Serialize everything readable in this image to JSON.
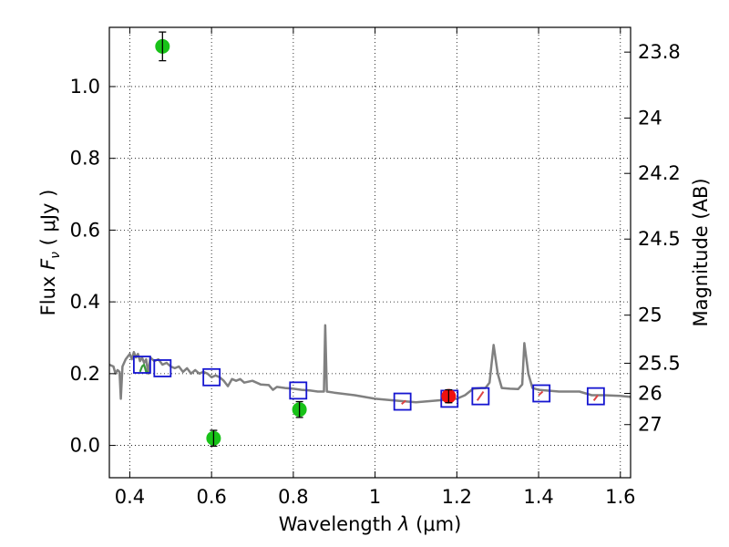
{
  "chart_data": {
    "type": "scatter",
    "xlabel": "Wavelength  λ (μm)",
    "ylabel": "Flux  F_ν  ( μJy )",
    "ylabel_parts": {
      "prefix": "Flux  ",
      "symbol": "F",
      "sub": "ν",
      "unit": "  ( μJy )"
    },
    "xlabel_parts": {
      "prefix": "Wavelength  ",
      "symbol": "λ",
      "unit": " (μm)"
    },
    "y2label": "Magnitude (AB)",
    "xlim": [
      0.35,
      1.625
    ],
    "ylim": [
      -0.09,
      1.165
    ],
    "grid": true,
    "x_ticks": [
      {
        "value": 0.4,
        "label": "0.4"
      },
      {
        "value": 0.6,
        "label": "0.6"
      },
      {
        "value": 0.8,
        "label": "0.8"
      },
      {
        "value": 1.0,
        "label": "1"
      },
      {
        "value": 1.2,
        "label": "1.2"
      },
      {
        "value": 1.4,
        "label": "1.4"
      },
      {
        "value": 1.6,
        "label": "1.6"
      }
    ],
    "y_ticks": [
      {
        "value": 0.0,
        "label": "0.0"
      },
      {
        "value": 0.2,
        "label": "0.2"
      },
      {
        "value": 0.4,
        "label": "0.4"
      },
      {
        "value": 0.6,
        "label": "0.6"
      },
      {
        "value": 0.8,
        "label": "0.8"
      },
      {
        "value": 1.0,
        "label": "1.0"
      }
    ],
    "y2_ticks": [
      {
        "flux": 1.096,
        "label": "23.8"
      },
      {
        "flux": 0.912,
        "label": "24"
      },
      {
        "flux": 0.758,
        "label": "24.2"
      },
      {
        "flux": 0.575,
        "label": "24.5"
      },
      {
        "flux": 0.363,
        "label": "25"
      },
      {
        "flux": 0.229,
        "label": "25.5"
      },
      {
        "flux": 0.145,
        "label": "26"
      },
      {
        "flux": 0.058,
        "label": "27"
      }
    ],
    "series": [
      {
        "name": "model spectrum",
        "kind": "line",
        "color": "#808080",
        "points": [
          [
            0.35,
            0.225
          ],
          [
            0.36,
            0.22
          ],
          [
            0.365,
            0.2
          ],
          [
            0.37,
            0.21
          ],
          [
            0.375,
            0.205
          ],
          [
            0.378,
            0.13
          ],
          [
            0.382,
            0.22
          ],
          [
            0.39,
            0.24
          ],
          [
            0.4,
            0.255
          ],
          [
            0.405,
            0.24
          ],
          [
            0.41,
            0.26
          ],
          [
            0.415,
            0.245
          ],
          [
            0.42,
            0.255
          ],
          [
            0.425,
            0.235
          ],
          [
            0.43,
            0.245
          ],
          [
            0.435,
            0.23
          ],
          [
            0.44,
            0.24
          ],
          [
            0.445,
            0.2
          ],
          [
            0.45,
            0.245
          ],
          [
            0.46,
            0.235
          ],
          [
            0.47,
            0.24
          ],
          [
            0.48,
            0.225
          ],
          [
            0.49,
            0.23
          ],
          [
            0.5,
            0.22
          ],
          [
            0.51,
            0.215
          ],
          [
            0.52,
            0.22
          ],
          [
            0.53,
            0.205
          ],
          [
            0.54,
            0.215
          ],
          [
            0.55,
            0.2
          ],
          [
            0.56,
            0.21
          ],
          [
            0.57,
            0.2
          ],
          [
            0.58,
            0.205
          ],
          [
            0.59,
            0.2
          ],
          [
            0.6,
            0.19
          ],
          [
            0.61,
            0.195
          ],
          [
            0.62,
            0.19
          ],
          [
            0.63,
            0.18
          ],
          [
            0.64,
            0.165
          ],
          [
            0.65,
            0.185
          ],
          [
            0.66,
            0.18
          ],
          [
            0.67,
            0.185
          ],
          [
            0.68,
            0.175
          ],
          [
            0.7,
            0.18
          ],
          [
            0.72,
            0.17
          ],
          [
            0.74,
            0.168
          ],
          [
            0.75,
            0.155
          ],
          [
            0.76,
            0.163
          ],
          [
            0.78,
            0.16
          ],
          [
            0.8,
            0.158
          ],
          [
            0.82,
            0.155
          ],
          [
            0.84,
            0.153
          ],
          [
            0.86,
            0.15
          ],
          [
            0.875,
            0.15
          ],
          [
            0.878,
            0.335
          ],
          [
            0.882,
            0.15
          ],
          [
            0.9,
            0.147
          ],
          [
            0.95,
            0.14
          ],
          [
            1.0,
            0.13
          ],
          [
            1.05,
            0.125
          ],
          [
            1.1,
            0.12
          ],
          [
            1.15,
            0.125
          ],
          [
            1.2,
            0.13
          ],
          [
            1.22,
            0.14
          ],
          [
            1.24,
            0.158
          ],
          [
            1.26,
            0.16
          ],
          [
            1.27,
            0.16
          ],
          [
            1.28,
            0.175
          ],
          [
            1.29,
            0.28
          ],
          [
            1.3,
            0.2
          ],
          [
            1.31,
            0.16
          ],
          [
            1.33,
            0.158
          ],
          [
            1.35,
            0.157
          ],
          [
            1.36,
            0.17
          ],
          [
            1.365,
            0.285
          ],
          [
            1.375,
            0.2
          ],
          [
            1.385,
            0.16
          ],
          [
            1.4,
            0.155
          ],
          [
            1.45,
            0.15
          ],
          [
            1.5,
            0.15
          ],
          [
            1.53,
            0.14
          ],
          [
            1.56,
            0.14
          ],
          [
            1.6,
            0.138
          ],
          [
            1.625,
            0.135
          ]
        ]
      },
      {
        "name": "green model segment",
        "kind": "line",
        "color": "#3a9a3a",
        "points": [
          [
            0.425,
            0.205
          ],
          [
            0.43,
            0.22
          ],
          [
            0.435,
            0.225
          ],
          [
            0.44,
            0.205
          ],
          [
            0.445,
            0.205
          ]
        ]
      },
      {
        "name": "red model segments",
        "kind": "line",
        "color": "#dd4444",
        "points": [
          [
            1.065,
            0.115
          ],
          [
            1.075,
            0.125
          ],
          [
            1.17,
            0.13
          ],
          [
            1.185,
            0.14
          ],
          [
            1.25,
            0.125
          ],
          [
            1.265,
            0.15
          ],
          [
            1.4,
            0.14
          ],
          [
            1.41,
            0.15
          ],
          [
            1.535,
            0.125
          ],
          [
            1.545,
            0.14
          ]
        ]
      },
      {
        "name": "model photometry",
        "kind": "open-square",
        "color": "#1515d0",
        "points": [
          [
            0.43,
            0.225
          ],
          [
            0.48,
            0.215
          ],
          [
            0.6,
            0.19
          ],
          [
            0.812,
            0.153
          ],
          [
            1.067,
            0.122
          ],
          [
            1.182,
            0.13
          ],
          [
            1.258,
            0.137
          ],
          [
            1.407,
            0.145
          ],
          [
            1.54,
            0.137
          ]
        ]
      },
      {
        "name": "detections",
        "kind": "filled-circle",
        "color": "#18c218",
        "points": [
          {
            "x": 0.48,
            "y": 1.112,
            "err": 0.04
          },
          {
            "x": 0.605,
            "y": 0.02,
            "err": 0.022
          },
          {
            "x": 0.815,
            "y": 0.1,
            "err": 0.022
          }
        ]
      },
      {
        "name": "red detection",
        "kind": "filled-circle",
        "color": "#ee1010",
        "points": [
          {
            "x": 1.18,
            "y": 0.137,
            "err": 0.018
          }
        ]
      }
    ]
  }
}
